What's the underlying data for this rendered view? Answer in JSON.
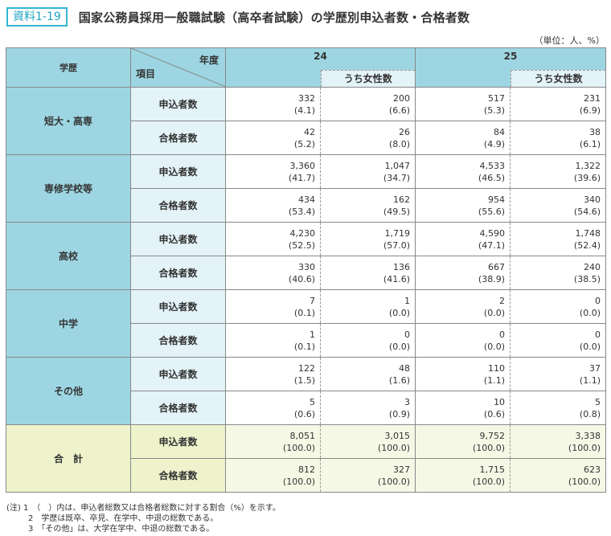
{
  "header": {
    "badge": "資料1-19",
    "title": "国家公務員採用一般職試験（高卒者試験）の学歴別申込者数・合格者数",
    "unit": "（単位：人、%）"
  },
  "table": {
    "col_education": "学歴",
    "col_year": "年度",
    "col_item": "項目",
    "years": [
      "24",
      "25"
    ],
    "female_label": "うち女性数",
    "rows": [
      {
        "edu": "短大・高専",
        "items": [
          {
            "label": "申込者数",
            "v": [
              [
                "332",
                "(4.1)"
              ],
              [
                "200",
                "(6.6)"
              ],
              [
                "517",
                "(5.3)"
              ],
              [
                "231",
                "(6.9)"
              ]
            ]
          },
          {
            "label": "合格者数",
            "v": [
              [
                "42",
                "(5.2)"
              ],
              [
                "26",
                "(8.0)"
              ],
              [
                "84",
                "(4.9)"
              ],
              [
                "38",
                "(6.1)"
              ]
            ]
          }
        ]
      },
      {
        "edu": "専修学校等",
        "items": [
          {
            "label": "申込者数",
            "v": [
              [
                "3,360",
                "(41.7)"
              ],
              [
                "1,047",
                "(34.7)"
              ],
              [
                "4,533",
                "(46.5)"
              ],
              [
                "1,322",
                "(39.6)"
              ]
            ]
          },
          {
            "label": "合格者数",
            "v": [
              [
                "434",
                "(53.4)"
              ],
              [
                "162",
                "(49.5)"
              ],
              [
                "954",
                "(55.6)"
              ],
              [
                "340",
                "(54.6)"
              ]
            ]
          }
        ]
      },
      {
        "edu": "高校",
        "items": [
          {
            "label": "申込者数",
            "v": [
              [
                "4,230",
                "(52.5)"
              ],
              [
                "1,719",
                "(57.0)"
              ],
              [
                "4,590",
                "(47.1)"
              ],
              [
                "1,748",
                "(52.4)"
              ]
            ]
          },
          {
            "label": "合格者数",
            "v": [
              [
                "330",
                "(40.6)"
              ],
              [
                "136",
                "(41.6)"
              ],
              [
                "667",
                "(38.9)"
              ],
              [
                "240",
                "(38.5)"
              ]
            ]
          }
        ]
      },
      {
        "edu": "中学",
        "items": [
          {
            "label": "申込者数",
            "v": [
              [
                "7",
                "(0.1)"
              ],
              [
                "1",
                "(0.0)"
              ],
              [
                "2",
                "(0.0)"
              ],
              [
                "0",
                "(0.0)"
              ]
            ]
          },
          {
            "label": "合格者数",
            "v": [
              [
                "1",
                "(0.1)"
              ],
              [
                "0",
                "(0.0)"
              ],
              [
                "0",
                "(0.0)"
              ],
              [
                "0",
                "(0.0)"
              ]
            ]
          }
        ]
      },
      {
        "edu": "その他",
        "items": [
          {
            "label": "申込者数",
            "v": [
              [
                "122",
                "(1.5)"
              ],
              [
                "48",
                "(1.6)"
              ],
              [
                "110",
                "(1.1)"
              ],
              [
                "37",
                "(1.1)"
              ]
            ]
          },
          {
            "label": "合格者数",
            "v": [
              [
                "5",
                "(0.6)"
              ],
              [
                "3",
                "(0.9)"
              ],
              [
                "10",
                "(0.6)"
              ],
              [
                "5",
                "(0.8)"
              ]
            ]
          }
        ]
      },
      {
        "edu": "合　計",
        "items": [
          {
            "label": "申込者数",
            "v": [
              [
                "8,051",
                "(100.0)"
              ],
              [
                "3,015",
                "(100.0)"
              ],
              [
                "9,752",
                "(100.0)"
              ],
              [
                "3,338",
                "(100.0)"
              ]
            ]
          },
          {
            "label": "合格者数",
            "v": [
              [
                "812",
                "(100.0)"
              ],
              [
                "327",
                "(100.0)"
              ],
              [
                "1,715",
                "(100.0)"
              ],
              [
                "623",
                "(100.0)"
              ]
            ]
          }
        ]
      }
    ]
  },
  "notes": [
    "(注) 1　（　）内は、申込者総数又は合格者総数に対する割合（%）を示す。",
    "2　学歴は既卒、卒見、在学中、中退の総数である。",
    "3　「その他」は、大学在学中、中退の総数である。"
  ],
  "colors": {
    "accent": "#35b6cf",
    "header_bg": "#9dd6e2",
    "item_bg": "#e3f3f7",
    "total_bg": "#eef3cc",
    "total_cell_bg": "#f6f8e6"
  }
}
